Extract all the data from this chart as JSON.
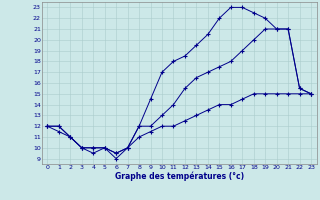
{
  "title": "Graphe des températures (°c)",
  "bg_color": "#cce8e8",
  "line_color": "#00008b",
  "xlim": [
    -0.5,
    23.5
  ],
  "ylim": [
    8.5,
    23.5
  ],
  "xticks": [
    0,
    1,
    2,
    3,
    4,
    5,
    6,
    7,
    8,
    9,
    10,
    11,
    12,
    13,
    14,
    15,
    16,
    17,
    18,
    19,
    20,
    21,
    22,
    23
  ],
  "yticks": [
    9,
    10,
    11,
    12,
    13,
    14,
    15,
    16,
    17,
    18,
    19,
    20,
    21,
    22,
    23
  ],
  "line1_x": [
    0,
    1,
    2,
    3,
    4,
    5,
    6,
    7,
    8,
    9,
    10,
    11,
    12,
    13,
    14,
    15,
    16,
    17,
    18,
    19,
    20,
    21,
    22,
    23
  ],
  "line1_y": [
    12,
    11.5,
    11,
    10,
    10,
    10,
    9,
    10,
    11,
    11.5,
    12,
    12,
    12.5,
    13,
    13.5,
    14,
    14,
    14.5,
    15,
    15,
    15,
    15,
    15,
    15
  ],
  "line2_x": [
    0,
    1,
    2,
    3,
    4,
    5,
    6,
    7,
    8,
    9,
    10,
    11,
    12,
    13,
    14,
    15,
    16,
    17,
    18,
    19,
    20,
    21,
    22,
    23
  ],
  "line2_y": [
    12,
    12,
    11,
    10,
    9.5,
    10,
    9.5,
    10,
    12,
    14.5,
    17,
    18,
    18.5,
    19.5,
    20.5,
    22,
    23,
    23,
    22.5,
    22,
    21,
    21,
    15.5,
    15
  ],
  "line3_x": [
    0,
    1,
    2,
    3,
    4,
    5,
    6,
    7,
    8,
    9,
    10,
    11,
    12,
    13,
    14,
    15,
    16,
    17,
    18,
    19,
    20,
    21,
    22,
    23
  ],
  "line3_y": [
    12,
    12,
    11,
    10,
    10,
    10,
    9.5,
    10,
    12,
    12,
    13,
    14,
    15.5,
    16.5,
    17,
    17.5,
    18,
    19,
    20,
    21,
    21,
    21,
    15.5,
    15
  ]
}
